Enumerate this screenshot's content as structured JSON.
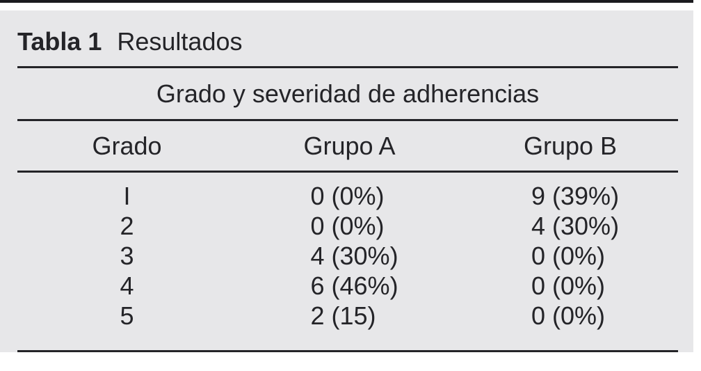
{
  "colors": {
    "top_bar": "#1b1b1f",
    "panel_background": "#e7e7e9",
    "text": "#242428",
    "rule": "#242428"
  },
  "table": {
    "title_label": "Tabla 1",
    "title_text": "Resultados",
    "span_header": "Grado y severidad de adherencias",
    "columns": [
      "Grado",
      "Grupo A",
      "Grupo B"
    ],
    "rows": [
      {
        "grado": "I",
        "grupo_a": "0 (0%)",
        "grupo_b": "9 (39%)"
      },
      {
        "grado": "2",
        "grupo_a": "0 (0%)",
        "grupo_b": "4 (30%)"
      },
      {
        "grado": "3",
        "grupo_a": "4 (30%)",
        "grupo_b": "0 (0%)"
      },
      {
        "grado": "4",
        "grupo_a": "6 (46%)",
        "grupo_b": "0 (0%)"
      },
      {
        "grado": "5",
        "grupo_a": "2 (15)",
        "grupo_b": "0 (0%)"
      }
    ]
  },
  "chart_data": {
    "type": "table",
    "title": "Tabla 1 Resultados",
    "subtitle": "Grado y severidad de adherencias",
    "columns": [
      "Grado",
      "Grupo A",
      "Grupo B"
    ],
    "rows": [
      [
        "I",
        "0 (0%)",
        "9 (39%)"
      ],
      [
        "2",
        "0 (0%)",
        "4 (30%)"
      ],
      [
        "3",
        "4 (30%)",
        "0 (0%)"
      ],
      [
        "4",
        "6 (46%)",
        "0 (0%)"
      ],
      [
        "5",
        "2 (15)",
        "0 (0%)"
      ]
    ]
  }
}
